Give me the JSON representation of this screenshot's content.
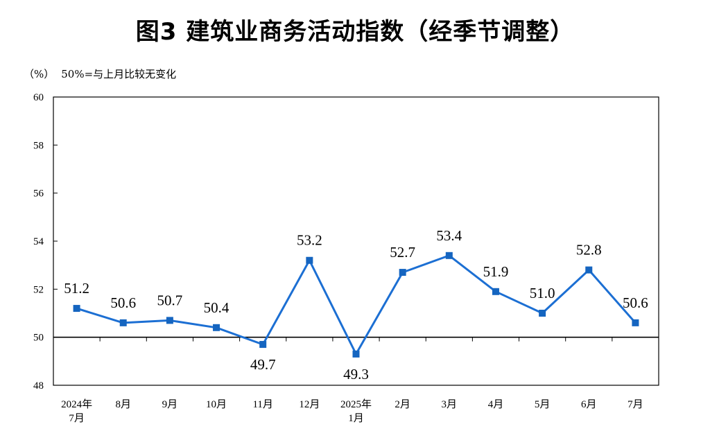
{
  "title": "图3  建筑业商务活动指数（经季节调整）",
  "unit": "（%）",
  "note": "50%=与上月比较无变化",
  "colors": {
    "series": "#1c6fd3",
    "marker": "#1565c0",
    "axis": "#000000"
  },
  "chart_data": {
    "type": "line",
    "title": "图3  建筑业商务活动指数（经季节调整）",
    "xlabel": "",
    "ylabel": "（%）",
    "ylim": [
      48,
      60
    ],
    "yticks": [
      48,
      50,
      52,
      54,
      56,
      58,
      60
    ],
    "baseline": 50,
    "grid": false,
    "legend": "none",
    "categories": [
      [
        "2024年",
        "7月"
      ],
      [
        "8月"
      ],
      [
        "9月"
      ],
      [
        "10月"
      ],
      [
        "11月"
      ],
      [
        "12月"
      ],
      [
        "2025年",
        "1月"
      ],
      [
        "2月"
      ],
      [
        "3月"
      ],
      [
        "4月"
      ],
      [
        "5月"
      ],
      [
        "6月"
      ],
      [
        "7月"
      ]
    ],
    "series": [
      {
        "values": [
          51.2,
          50.6,
          50.7,
          50.4,
          49.7,
          53.2,
          49.3,
          52.7,
          53.4,
          51.9,
          51.0,
          52.8,
          50.6
        ],
        "labels": [
          "51.2",
          "50.6",
          "50.7",
          "50.4",
          "49.7",
          "53.2",
          "49.3",
          "52.7",
          "53.4",
          "51.9",
          "51.0",
          "52.8",
          "50.6"
        ]
      }
    ]
  }
}
